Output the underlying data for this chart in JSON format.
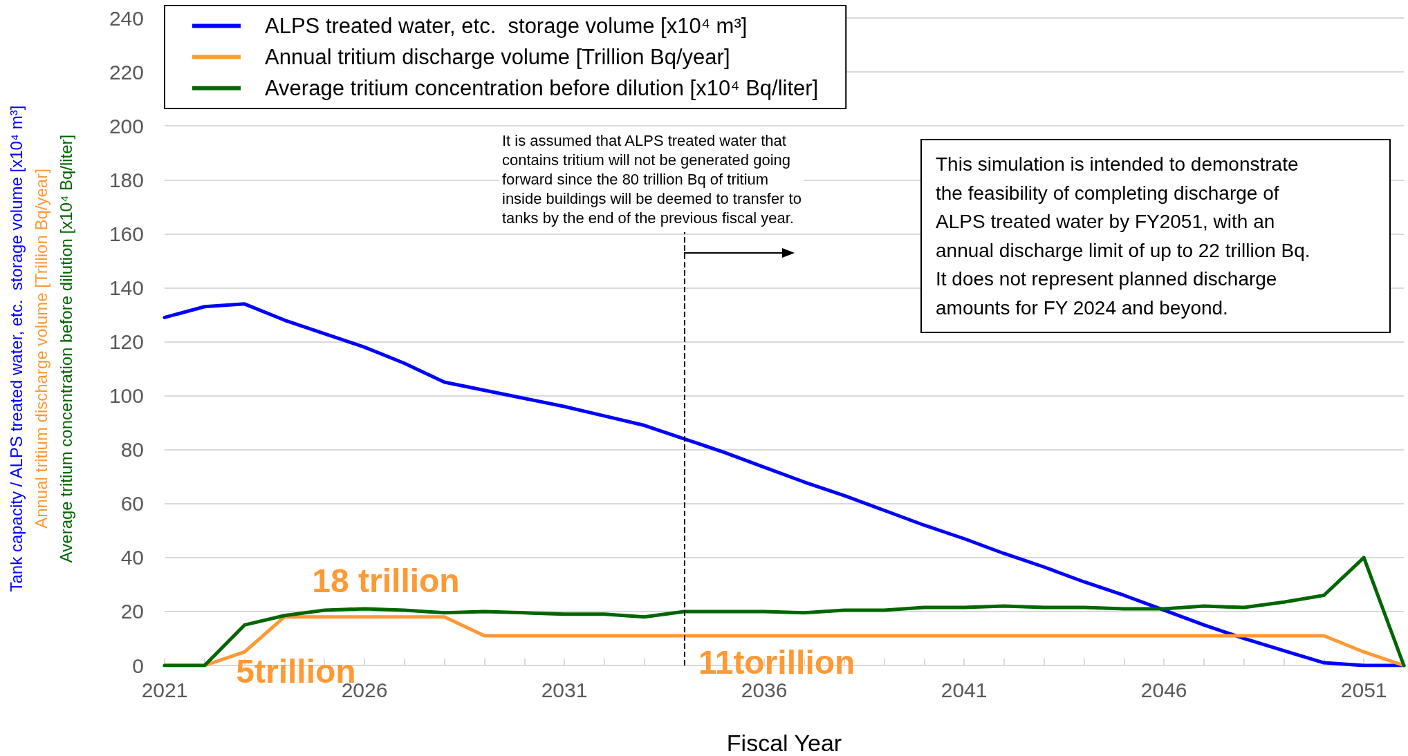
{
  "chart_data": {
    "type": "line",
    "xlabel": "Fiscal Year",
    "ylabel": [
      "Tank capacity / ALPS treated water, etc.  storage volume [x10⁴ m³]",
      "Annual tritium discharge volume [Trillion Bq/year]",
      "Average tritium concentration before dilution [x10⁴ Bq/liter]"
    ],
    "x": [
      2021,
      2022,
      2023,
      2024,
      2025,
      2026,
      2027,
      2028,
      2029,
      2030,
      2031,
      2032,
      2033,
      2034,
      2035,
      2036,
      2037,
      2038,
      2039,
      2040,
      2041,
      2042,
      2043,
      2044,
      2045,
      2046,
      2047,
      2048,
      2049,
      2050,
      2051,
      2052
    ],
    "series": [
      {
        "name": "ALPS treated water, etc.  storage volume [x10⁴ m³]",
        "color": "#0000ff",
        "values": [
          129,
          133,
          134,
          128,
          123,
          118,
          112,
          105,
          102,
          99,
          96,
          92.5,
          89,
          84,
          79,
          73.5,
          68,
          63,
          57.5,
          52,
          47,
          41.5,
          36.5,
          31,
          26,
          20.5,
          15,
          10,
          5.5,
          1,
          0,
          0
        ]
      },
      {
        "name": "Annual tritium discharge volume [Trillion Bq/year]",
        "color": "#ff9933",
        "values": [
          0,
          0,
          5,
          18,
          18,
          18,
          18,
          18,
          11,
          11,
          11,
          11,
          11,
          11,
          11,
          11,
          11,
          11,
          11,
          11,
          11,
          11,
          11,
          11,
          11,
          11,
          11,
          11,
          11,
          11,
          5,
          0
        ]
      },
      {
        "name": "Average tritium concentration before dilution [x10⁴ Bq/liter]",
        "color": "#006600",
        "values": [
          0,
          0,
          15,
          18.5,
          20.5,
          21,
          20.5,
          19.5,
          20,
          19.5,
          19,
          19,
          18,
          20,
          20,
          20,
          19.5,
          20.5,
          20.5,
          21.5,
          21.5,
          22,
          21.5,
          21.5,
          21,
          21,
          22,
          21.5,
          23.5,
          26,
          40,
          0
        ]
      }
    ],
    "xlim": [
      2021,
      2052
    ],
    "xticks": [
      2021,
      {
        "value": 2022,
        "label": null
      },
      {
        "value": 2023,
        "label": null
      },
      {
        "value": 2024,
        "label": null
      },
      {
        "value": 2025,
        "label": null
      },
      2026,
      {
        "value": 2027,
        "label": null
      },
      {
        "value": 2028,
        "label": null
      },
      {
        "value": 2029,
        "label": null
      },
      {
        "value": 2030,
        "label": null
      },
      2031,
      {
        "value": 2032,
        "label": null
      },
      {
        "value": 2033,
        "label": null
      },
      {
        "value": 2034,
        "label": null
      },
      {
        "value": 2035,
        "label": null
      },
      2036,
      {
        "value": 2037,
        "label": null
      },
      {
        "value": 2038,
        "label": null
      },
      {
        "value": 2039,
        "label": null
      },
      {
        "value": 2040,
        "label": null
      },
      2041,
      {
        "value": 2042,
        "label": null
      },
      {
        "value": 2043,
        "label": null
      },
      {
        "value": 2044,
        "label": null
      },
      {
        "value": 2045,
        "label": null
      },
      2046,
      {
        "value": 2047,
        "label": null
      },
      {
        "value": 2048,
        "label": null
      },
      {
        "value": 2049,
        "label": null
      },
      {
        "value": 2050,
        "label": null
      },
      2051,
      {
        "value": 2052,
        "label": null
      }
    ],
    "ylim": [
      0,
      240
    ],
    "yticks": [
      0,
      20,
      40,
      60,
      80,
      100,
      120,
      140,
      160,
      180,
      200,
      220,
      240
    ],
    "grid": "y",
    "legend": "top left",
    "marker": "none",
    "line_style": "solid",
    "ref_lines": [
      {
        "axis": "x",
        "value": 2034,
        "color": "#000000",
        "line_style": "dashed"
      }
    ],
    "annotations": [
      "18 trillion",
      "5trillion",
      "11torillion",
      "It is assumed that ALPS treated water that\ncontains tritium will not be generated going\nforward since the 80 trillion Bq of tritium\ninside buildings will be deemed to transfer to\ntanks by the end of the previous fiscal year.",
      "This simulation is intended to demonstrate\nthe feasibility of completing discharge of\nALPS treated water by FY2051, with an\nannual discharge limit of up to 22 trillion Bq.\nIt does not represent planned discharge\namounts for FY 2024 and beyond."
    ]
  }
}
